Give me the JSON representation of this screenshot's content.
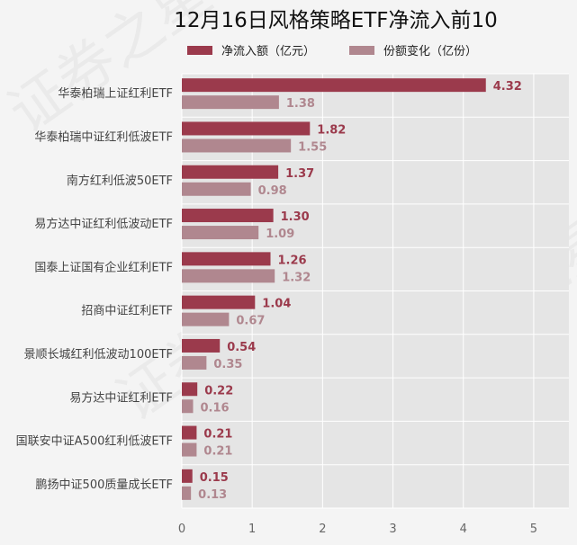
{
  "chart_data": {
    "type": "bar",
    "orientation": "horizontal",
    "title": "12月16日风格策略ETF净流入前10",
    "categories": [
      "华泰柏瑞上证红利ETF",
      "华泰柏瑞中证红利低波ETF",
      "南方红利低波50ETF",
      "易方达中证红利低波动ETF",
      "国泰上证国有企业红利ETF",
      "招商中证红利ETF",
      "景顺长城红利低波动100ETF",
      "易方达中证红利ETF",
      "国联安中证A500红利低波ETF",
      "鹏扬中证500质量成长ETF"
    ],
    "series": [
      {
        "name": "净流入额（亿元）",
        "color": "#9b3a4c",
        "values": [
          4.32,
          1.82,
          1.37,
          1.3,
          1.26,
          1.04,
          0.54,
          0.22,
          0.21,
          0.15
        ],
        "labels": [
          "4.32",
          "1.82",
          "1.37",
          "1.30",
          "1.26",
          "1.04",
          "0.54",
          "0.22",
          "0.21",
          "0.15"
        ]
      },
      {
        "name": "份额变化（亿份）",
        "color": "#b0878f",
        "values": [
          1.38,
          1.55,
          0.98,
          1.09,
          1.32,
          0.67,
          0.35,
          0.16,
          0.21,
          0.13
        ],
        "labels": [
          "1.38",
          "1.55",
          "0.98",
          "1.09",
          "1.32",
          "0.67",
          "0.35",
          "0.16",
          "0.21",
          "0.13"
        ]
      }
    ],
    "xlim": [
      0,
      5.5
    ],
    "xticks": [
      "0",
      "1",
      "2",
      "3",
      "4",
      "5"
    ],
    "xlabel": "",
    "ylabel": "",
    "grid": true,
    "legend_position": "top",
    "background": "#e5e5e5",
    "watermark": "证券之星"
  }
}
